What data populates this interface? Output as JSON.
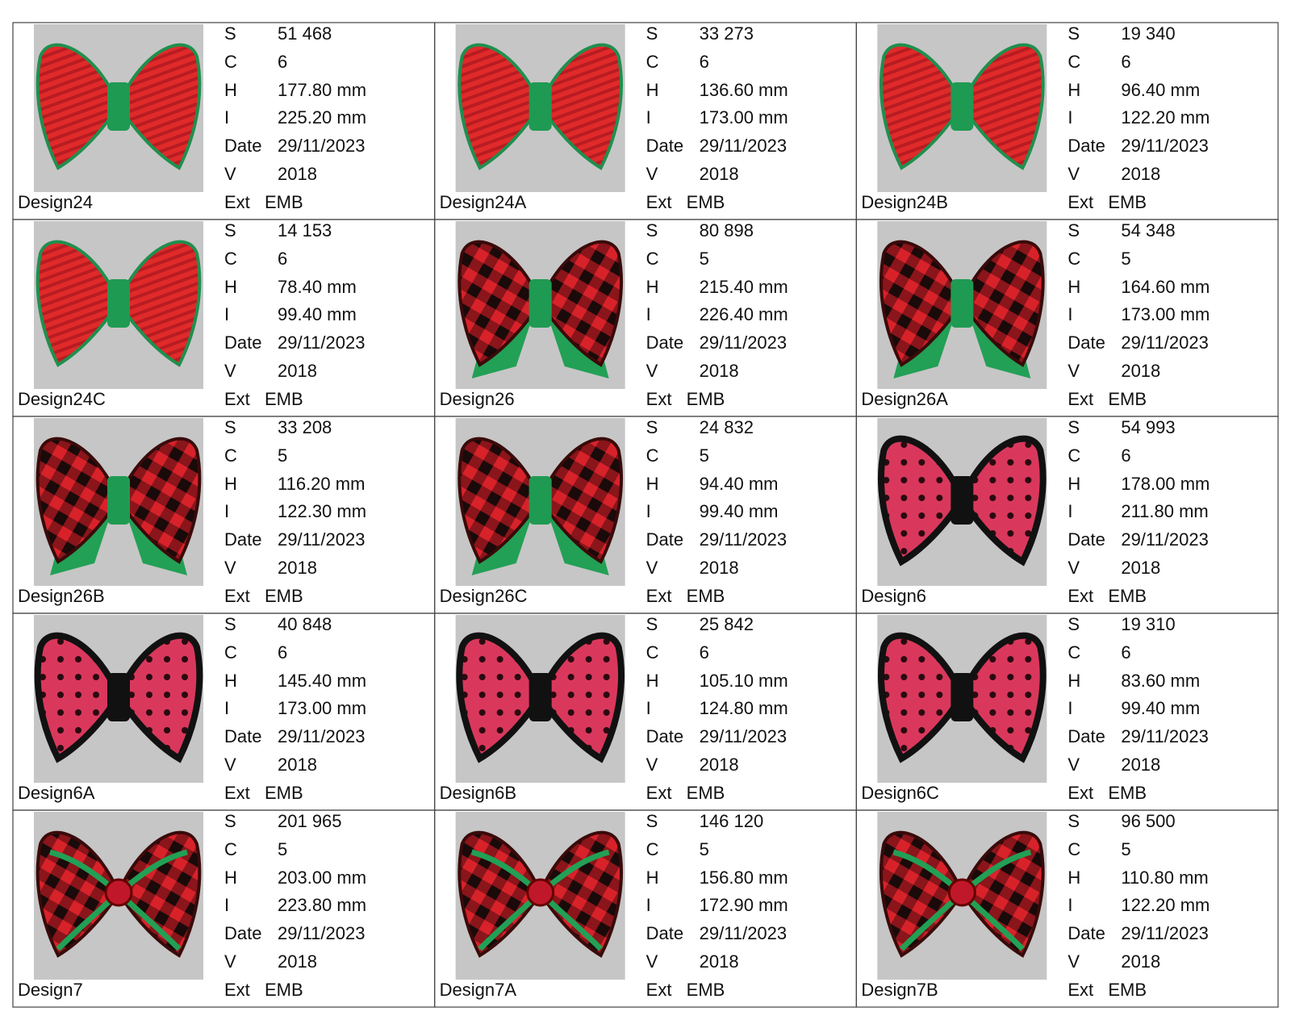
{
  "field_labels": [
    "S",
    "C",
    "H",
    "I",
    "Date",
    "V",
    "Ext"
  ],
  "cells": [
    {
      "name": "Design24",
      "values": [
        "51 468",
        "6",
        "177.80 mm",
        "225.20 mm",
        "29/11/2023",
        "2018",
        "EMB"
      ]
    },
    {
      "name": "Design24A",
      "values": [
        "33 273",
        "6",
        "136.60 mm",
        "173.00 mm",
        "29/11/2023",
        "2018",
        "EMB"
      ]
    },
    {
      "name": "Design24B",
      "values": [
        "19 340",
        "6",
        "96.40 mm",
        "122.20 mm",
        "29/11/2023",
        "2018",
        "EMB"
      ]
    },
    {
      "name": "Design24C",
      "values": [
        "14 153",
        "6",
        "78.40 mm",
        "99.40 mm",
        "29/11/2023",
        "2018",
        "EMB"
      ]
    },
    {
      "name": "Design26",
      "values": [
        "80 898",
        "5",
        "215.40 mm",
        "226.40 mm",
        "29/11/2023",
        "2018",
        "EMB"
      ]
    },
    {
      "name": "Design26A",
      "values": [
        "54 348",
        "5",
        "164.60 mm",
        "173.00 mm",
        "29/11/2023",
        "2018",
        "EMB"
      ]
    },
    {
      "name": "Design26B",
      "values": [
        "33 208",
        "5",
        "116.20 mm",
        "122.30 mm",
        "29/11/2023",
        "2018",
        "EMB"
      ]
    },
    {
      "name": "Design26C",
      "values": [
        "24 832",
        "5",
        "94.40 mm",
        "99.40 mm",
        "29/11/2023",
        "2018",
        "EMB"
      ]
    },
    {
      "name": "Design6",
      "values": [
        "54 993",
        "6",
        "178.00 mm",
        "211.80 mm",
        "29/11/2023",
        "2018",
        "EMB"
      ]
    },
    {
      "name": "Design6A",
      "values": [
        "40 848",
        "6",
        "145.40 mm",
        "173.00 mm",
        "29/11/2023",
        "2018",
        "EMB"
      ]
    },
    {
      "name": "Design6B",
      "values": [
        "25 842",
        "6",
        "105.10 mm",
        "124.80 mm",
        "29/11/2023",
        "2018",
        "EMB"
      ]
    },
    {
      "name": "Design6C",
      "values": [
        "19 310",
        "6",
        "83.60 mm",
        "99.40 mm",
        "29/11/2023",
        "2018",
        "EMB"
      ]
    },
    {
      "name": "Design7",
      "values": [
        "201 965",
        "5",
        "203.00 mm",
        "223.80 mm",
        "29/11/2023",
        "2018",
        "EMB"
      ]
    },
    {
      "name": "Design7A",
      "values": [
        "146 120",
        "5",
        "156.80 mm",
        "172.90 mm",
        "29/11/2023",
        "2018",
        "EMB"
      ]
    },
    {
      "name": "Design7B",
      "values": [
        "96 500",
        "5",
        "110.80 mm",
        "122.20 mm",
        "29/11/2023",
        "2018",
        "EMB"
      ]
    }
  ]
}
